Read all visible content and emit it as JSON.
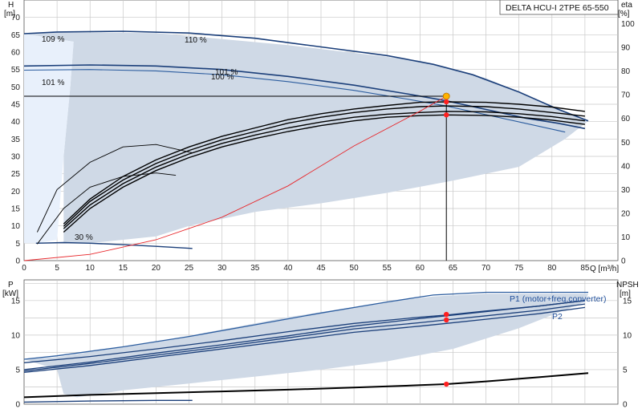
{
  "chart_data": [
    {
      "type": "line",
      "title": "DELTA HCU-I 2TPE 65-550",
      "xlabel": "Q [m³/h]",
      "ylabel": "H",
      "yunit": "[m]",
      "y2label": "eta",
      "y2unit": "[%]",
      "xlim": [
        0,
        90
      ],
      "ylim": [
        0,
        75
      ],
      "y2lim": [
        0,
        110
      ],
      "x_ticks": [
        "0",
        "5",
        "10",
        "15",
        "20",
        "25",
        "30",
        "35",
        "40",
        "45",
        "50",
        "55",
        "60",
        "65",
        "70",
        "75",
        "80",
        "85"
      ],
      "y_ticks": [
        "0",
        "5",
        "10",
        "15",
        "20",
        "25",
        "30",
        "35",
        "40",
        "45",
        "50",
        "55",
        "60",
        "65",
        "70"
      ],
      "y2_ticks": [
        "0",
        "10",
        "20",
        "30",
        "40",
        "50",
        "60",
        "70",
        "80",
        "90",
        "100"
      ],
      "grid": true,
      "operating_region": [
        [
          0,
          65.3
        ],
        [
          5.5,
          65.6
        ],
        [
          20,
          65.5
        ],
        [
          40,
          62
        ],
        [
          60,
          57.5
        ],
        [
          70,
          52.5
        ],
        [
          85.5,
          40.2
        ],
        [
          82,
          35
        ],
        [
          75,
          27
        ],
        [
          65,
          23
        ],
        [
          55,
          19.5
        ],
        [
          45,
          16.5
        ],
        [
          35,
          14
        ],
        [
          25,
          10
        ],
        [
          20,
          7
        ],
        [
          10,
          5
        ],
        [
          6,
          5.2
        ],
        [
          6,
          30
        ],
        [
          7,
          50
        ],
        [
          7.5,
          63
        ]
      ],
      "left_band": [
        [
          0,
          65.3
        ],
        [
          7.5,
          63
        ],
        [
          7,
          50
        ],
        [
          6,
          30
        ],
        [
          5,
          6
        ],
        [
          2,
          5
        ],
        [
          0,
          5
        ]
      ],
      "series": [
        {
          "name": "110 %",
          "role": "head",
          "x": [
            0,
            5,
            15,
            25,
            35,
            45,
            55,
            62,
            68,
            75,
            81,
            85.5
          ],
          "y": [
            65.3,
            65.8,
            66.0,
            65.5,
            64.0,
            61.5,
            59.0,
            56.5,
            53.5,
            48.5,
            43.5,
            40.2
          ]
        },
        {
          "name": "101 %",
          "role": "head",
          "x": [
            0,
            10,
            20,
            30,
            40,
            50,
            58,
            64,
            70,
            76,
            81,
            85
          ],
          "y": [
            56.0,
            56.3,
            56.0,
            55.0,
            53.0,
            50.5,
            48.0,
            46.0,
            43.5,
            41.0,
            39.5,
            38.0
          ]
        },
        {
          "name": "100 %",
          "role": "head",
          "x": [
            0,
            10,
            20,
            30,
            40,
            50,
            58,
            64,
            70,
            76,
            82
          ],
          "y": [
            54.8,
            55.0,
            54.6,
            53.5,
            51.5,
            49.0,
            46.5,
            44.5,
            42.0,
            39.5,
            37.0
          ]
        },
        {
          "name": "30 %",
          "role": "head",
          "x": [
            1.8,
            6,
            10,
            15,
            20,
            25.5
          ],
          "y": [
            5.0,
            5.2,
            5.0,
            4.6,
            4.1,
            3.5
          ]
        },
        {
          "name": "",
          "role": "eta",
          "x": [
            6,
            10,
            15,
            20,
            25,
            30,
            35,
            40,
            45,
            50,
            55,
            60,
            64,
            70,
            75,
            80,
            85
          ],
          "y": [
            12,
            22,
            31,
            38,
            43.5,
            48,
            51.5,
            54.5,
            57,
            59,
            60.5,
            61.2,
            61.5,
            61.3,
            60.5,
            59.3,
            57.5
          ]
        },
        {
          "name": "",
          "role": "eta",
          "x": [
            6,
            10,
            15,
            20,
            25,
            30,
            35,
            40,
            45,
            50,
            55,
            60,
            64,
            70,
            75,
            80,
            85
          ],
          "y": [
            13.5,
            23.5,
            32.5,
            39.5,
            45,
            49.5,
            53,
            56,
            58.5,
            60.5,
            61.8,
            62.5,
            63,
            62.8,
            62,
            60.8,
            59
          ]
        },
        {
          "name": "",
          "role": "eta",
          "x": [
            6,
            10,
            15,
            20,
            25,
            30,
            35,
            40,
            45,
            50,
            55,
            60,
            64,
            70,
            75,
            80,
            85
          ],
          "y": [
            14.5,
            25,
            34,
            41,
            46.5,
            51,
            54.5,
            58,
            60.5,
            62.5,
            64,
            65,
            65.3,
            65,
            64,
            62.5,
            61
          ]
        },
        {
          "name": "",
          "role": "eta",
          "x": [
            6,
            10,
            15,
            20,
            25,
            30,
            35,
            40,
            45,
            50,
            55,
            60,
            64,
            70,
            75,
            80,
            85
          ],
          "y": [
            15.5,
            26,
            35.5,
            42.5,
            48,
            52.5,
            56,
            59.5,
            62,
            64,
            65.5,
            66.8,
            67,
            66.8,
            66,
            64.8,
            63
          ]
        },
        {
          "name": "",
          "role": "eta",
          "x": [
            2,
            6,
            10,
            15,
            20,
            23
          ],
          "y": [
            7,
            22,
            31,
            35.5,
            37,
            36
          ]
        },
        {
          "name": "",
          "role": "eta",
          "x": [
            2,
            5,
            10,
            15,
            20,
            25.5
          ],
          "y": [
            12,
            30,
            41.5,
            48,
            49,
            45.5
          ]
        },
        {
          "name": "",
          "role": "system",
          "x": [
            0,
            10,
            20,
            30,
            40,
            50,
            60,
            64
          ],
          "y": [
            0,
            1.8,
            6.0,
            12.5,
            21.5,
            33.0,
            43.0,
            47.3
          ]
        }
      ],
      "operating_point": {
        "q": 64,
        "h": 47.3
      },
      "markers_eta": [
        {
          "x": 64,
          "y": 67
        },
        {
          "x": 64,
          "y": 61.5
        }
      ],
      "annotations": [
        "109 %",
        "110 %",
        "101 %",
        "100 %",
        "101 %",
        "30 %"
      ]
    },
    {
      "type": "line",
      "ylabel": "P",
      "yunit": "[kW]",
      "y2label": "NPSH",
      "y2unit": "[m]",
      "xlim": [
        0,
        90
      ],
      "ylim": [
        0,
        18
      ],
      "y_ticks": [
        "0",
        "5",
        "10",
        "15"
      ],
      "y2_ticks": [
        "0",
        "5",
        "10",
        "15"
      ],
      "grid": true,
      "operating_region": [
        [
          0,
          6.5
        ],
        [
          5,
          6.8
        ],
        [
          20,
          9
        ],
        [
          40,
          12.6
        ],
        [
          55,
          14.8
        ],
        [
          62,
          15.6
        ],
        [
          70,
          16.0
        ],
        [
          85.5,
          16.0
        ],
        [
          85,
          14.8
        ],
        [
          75,
          11
        ],
        [
          65,
          8
        ],
        [
          55,
          6.2
        ],
        [
          45,
          5
        ],
        [
          35,
          4
        ],
        [
          25,
          3
        ],
        [
          15,
          2
        ],
        [
          8,
          1
        ],
        [
          6,
          1.5
        ],
        [
          5,
          5
        ]
      ],
      "series": [
        {
          "name": "P1 (motor+freq.converter)",
          "role": "power",
          "x": [
            0,
            5,
            15,
            25,
            35,
            45,
            55,
            62,
            70,
            78,
            85.5
          ],
          "y": [
            6.5,
            7.0,
            8.3,
            9.8,
            11.5,
            13.2,
            14.8,
            15.8,
            16.2,
            16.2,
            16.2
          ]
        },
        {
          "name": "",
          "role": "power",
          "x": [
            0,
            10,
            20,
            30,
            40,
            50,
            60,
            64,
            70,
            78,
            85
          ],
          "y": [
            6.0,
            6.9,
            8.0,
            9.2,
            10.5,
            11.7,
            12.6,
            12.9,
            13.5,
            14.2,
            15.0
          ]
        },
        {
          "name": "",
          "role": "power",
          "x": [
            0,
            10,
            20,
            30,
            40,
            50,
            60,
            64,
            70,
            78,
            85
          ],
          "y": [
            5.0,
            6.1,
            7.4,
            8.6,
            9.9,
            11.3,
            12.4,
            12.8,
            13.4,
            14.2,
            15.0
          ]
        },
        {
          "name": "",
          "role": "power",
          "x": [
            0,
            10,
            20,
            30,
            40,
            50,
            60,
            64,
            70,
            78,
            85
          ],
          "y": [
            4.8,
            5.9,
            7.1,
            8.3,
            9.6,
            10.9,
            11.8,
            12.2,
            12.8,
            13.6,
            14.5
          ]
        },
        {
          "name": "P2",
          "role": "power",
          "x": [
            0,
            10,
            20,
            30,
            40,
            50,
            60,
            64,
            70,
            78,
            85
          ],
          "y": [
            4.6,
            5.6,
            6.8,
            8.0,
            9.2,
            10.4,
            11.3,
            11.7,
            12.3,
            13.1,
            14.0
          ]
        },
        {
          "name": "",
          "role": "npsh",
          "x": [
            0,
            10,
            20,
            30,
            40,
            50,
            60,
            64,
            70,
            78,
            85.5
          ],
          "y": [
            1.0,
            1.35,
            1.6,
            1.85,
            2.1,
            2.4,
            2.75,
            2.9,
            3.3,
            3.9,
            4.5
          ]
        },
        {
          "name": "",
          "role": "power",
          "x": [
            0,
            10,
            20,
            25.5
          ],
          "y": [
            0.3,
            0.45,
            0.55,
            0.55
          ]
        }
      ],
      "markers": [
        {
          "x": 64,
          "y": 13.0
        },
        {
          "x": 64,
          "y": 12.2
        },
        {
          "x": 64,
          "y": 2.9
        }
      ]
    }
  ],
  "colors": {
    "region": "#cfd9e6",
    "region_light": "#e8f0fb",
    "grid": "#c8c8c8",
    "curve_blue": "#1b3f7a",
    "curve_blue2": "#2c5d9f",
    "curve_black": "#000000",
    "system": "#e8262a",
    "marker_red": "#ff1f1f",
    "marker_yellow": "#ffb300",
    "label_blue": "#1f4e9a"
  }
}
